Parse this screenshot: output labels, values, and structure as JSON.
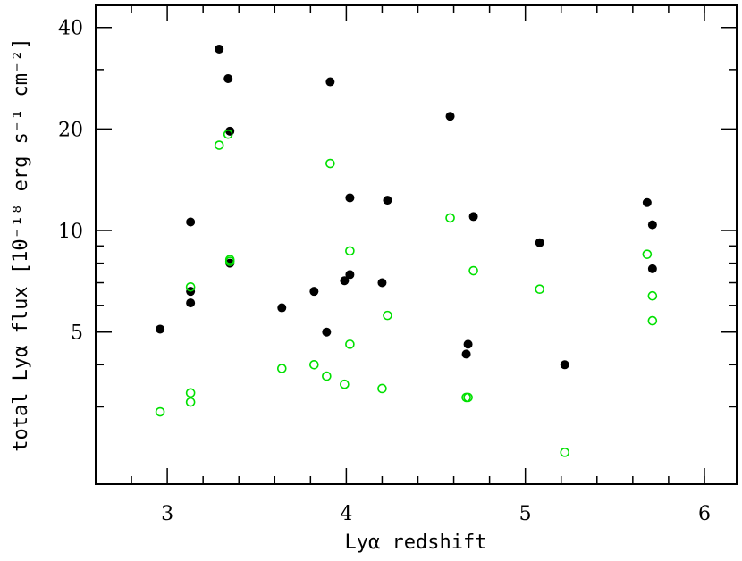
{
  "chart_data": {
    "type": "scatter",
    "xlabel": "Lyα redshift",
    "ylabel": "total Lyα flux [10⁻¹⁸ erg s⁻¹ cm⁻²]",
    "xlim": [
      2.6,
      6.18
    ],
    "ylim": [
      1.77,
      46.5
    ],
    "y_scale": "log",
    "x_ticks_major": [
      3,
      4,
      5,
      6
    ],
    "x_ticks_minor": [
      2.8,
      3.2,
      3.4,
      3.6,
      3.8,
      4.2,
      4.4,
      4.6,
      4.8,
      5.2,
      5.4,
      5.6,
      5.8,
      6.0
    ],
    "y_ticks_major": [
      5,
      10,
      20,
      40
    ],
    "y_ticks_minor": [
      3,
      4,
      6,
      7,
      8,
      9,
      30
    ],
    "x_tick_labels": [
      "3",
      "4",
      "5",
      "6"
    ],
    "y_tick_labels": [
      "5",
      "10",
      "20",
      "40"
    ],
    "grid": false,
    "legend": "none",
    "series": [
      {
        "marker": "filled-circle",
        "color": "#000000",
        "x": [
          2.96,
          3.13,
          3.13,
          3.13,
          3.29,
          3.34,
          3.35,
          3.35,
          3.64,
          3.82,
          3.89,
          3.91,
          3.99,
          4.02,
          4.02,
          4.2,
          4.23,
          4.58,
          4.67,
          4.68,
          4.71,
          5.08,
          5.22,
          5.68,
          5.71,
          5.71
        ],
        "y": [
          5.1,
          10.6,
          6.6,
          6.1,
          34.5,
          28.2,
          19.7,
          8.0,
          5.9,
          6.6,
          5.0,
          27.6,
          7.1,
          12.5,
          7.4,
          7.0,
          12.3,
          21.8,
          4.3,
          4.6,
          11.0,
          9.2,
          4.0,
          12.1,
          10.4,
          7.7
        ],
        "values_note": ""
      },
      {
        "marker": "open-circle",
        "color": "#00e000",
        "x": [
          2.96,
          3.13,
          3.13,
          3.13,
          3.29,
          3.34,
          3.35,
          3.35,
          3.64,
          3.82,
          3.89,
          3.91,
          3.99,
          4.02,
          4.02,
          4.2,
          4.23,
          4.58,
          4.67,
          4.68,
          4.71,
          5.08,
          5.22,
          5.68,
          5.71,
          5.71
        ],
        "y": [
          2.9,
          6.8,
          3.3,
          3.1,
          17.9,
          19.3,
          8.2,
          8.1,
          3.9,
          4.0,
          3.7,
          15.8,
          3.5,
          8.7,
          4.6,
          3.4,
          5.6,
          10.9,
          3.2,
          3.2,
          7.6,
          6.7,
          2.2,
          8.5,
          6.4,
          5.4
        ]
      }
    ]
  }
}
